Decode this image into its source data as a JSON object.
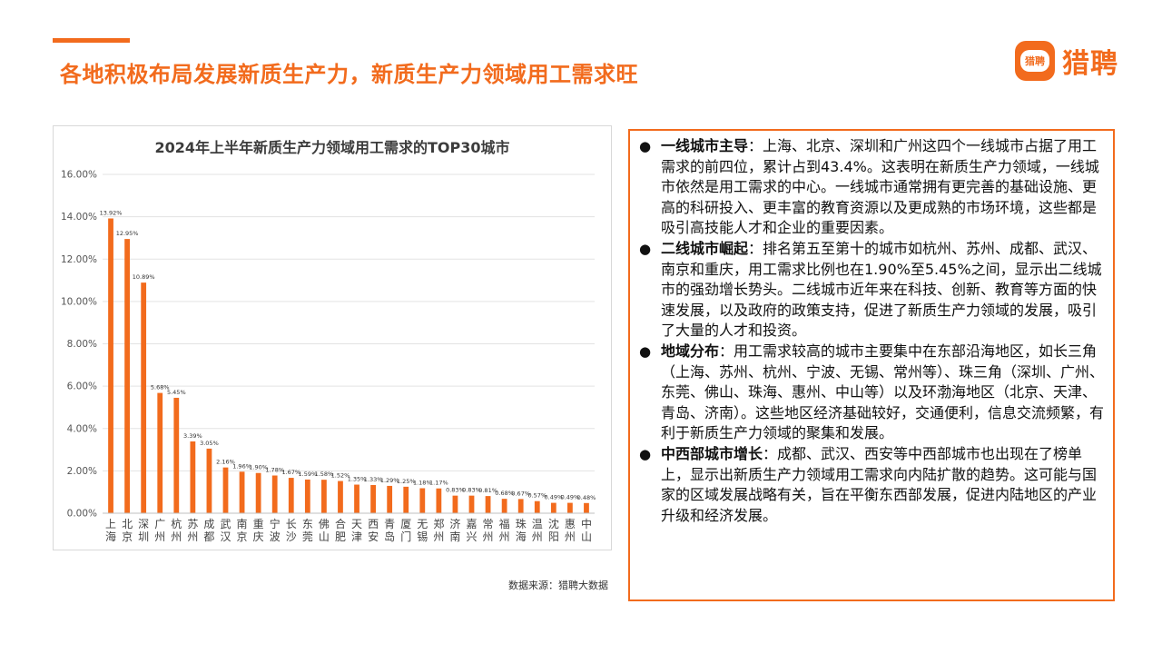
{
  "header": {
    "title": "各地积极布局发展新质生产力，新质生产力领域用工需求旺",
    "logo_badge": "猎聘",
    "logo_text": "猎聘"
  },
  "colors": {
    "accent": "#F26B1D",
    "bar": "#F26B1D",
    "grid": "#e3e3e3"
  },
  "chart_data": {
    "type": "bar",
    "title": "2024年上半年新质生产力领域用工需求的TOP30城市",
    "categories": [
      "上海",
      "北京",
      "深圳",
      "广州",
      "杭州",
      "苏州",
      "成都",
      "武汉",
      "南京",
      "重庆",
      "宁波",
      "长沙",
      "东莞",
      "佛山",
      "合肥",
      "天津",
      "西安",
      "青岛",
      "厦门",
      "无锡",
      "郑州",
      "济南",
      "嘉兴",
      "常州",
      "福州",
      "珠海",
      "温州",
      "沈阳",
      "惠州",
      "中山"
    ],
    "values": [
      13.92,
      12.95,
      10.89,
      5.68,
      5.45,
      3.39,
      3.05,
      2.16,
      1.96,
      1.9,
      1.78,
      1.67,
      1.59,
      1.58,
      1.52,
      1.35,
      1.33,
      1.29,
      1.25,
      1.18,
      1.17,
      0.83,
      0.83,
      0.81,
      0.68,
      0.67,
      0.57,
      0.49,
      0.49,
      0.48
    ],
    "data_labels": [
      "13.92%",
      "12.95%",
      "10.89%",
      "5.68%",
      "5.45%",
      "3.39%",
      "3.05%",
      "2.16%",
      "1.96%",
      "1.90%",
      "1.78%",
      "1.67%",
      "1.59%",
      "1.58%",
      "1.52%",
      "1.35%",
      "1.33%",
      "1.29%",
      "1.25%",
      "1.18%",
      "1.17%",
      "0.83%",
      "0.83%",
      "0.81%",
      "0.68%",
      "0.67%",
      "0.57%",
      "0.49%",
      "0.49%",
      "0.48%"
    ],
    "yticks": [
      "0.00%",
      "2.00%",
      "4.00%",
      "6.00%",
      "8.00%",
      "10.00%",
      "12.00%",
      "14.00%",
      "16.00%"
    ],
    "ylim": [
      0,
      16
    ],
    "xlabel": "",
    "ylabel": "",
    "grid": true
  },
  "source": "数据来源：猎聘大数据",
  "bullets": [
    {
      "head": "一线城市主导",
      "text": "：上海、北京、深圳和广州这四个一线城市占据了用工需求的前四位，累计占到43.4%。这表明在新质生产力领域，一线城市依然是用工需求的中心。一线城市通常拥有更完善的基础设施、更高的科研投入、更丰富的教育资源以及更成熟的市场环境，这些都是吸引高技能人才和企业的重要因素。"
    },
    {
      "head": "二线城市崛起",
      "text": "：排名第五至第十的城市如杭州、苏州、成都、武汉、南京和重庆，用工需求比例也在1.90%至5.45%之间，显示出二线城市的强劲增长势头。二线城市近年来在科技、创新、教育等方面的快速发展，以及政府的政策支持，促进了新质生产力领域的发展，吸引了大量的人才和投资。"
    },
    {
      "head": "地域分布",
      "text": "：用工需求较高的城市主要集中在东部沿海地区，如长三角（上海、苏州、杭州、宁波、无锡、常州等）、珠三角（深圳、广州、东莞、佛山、珠海、惠州、中山等）以及环渤海地区（北京、天津、青岛、济南）。这些地区经济基础较好，交通便利，信息交流频繁，有利于新质生产力领域的聚集和发展。"
    },
    {
      "head": "中西部城市增长",
      "text": "：成都、武汉、西安等中西部城市也出现在了榜单上，显示出新质生产力领域用工需求向内陆扩散的趋势。这可能与国家的区域发展战略有关，旨在平衡东西部发展，促进内陆地区的产业升级和经济发展。"
    }
  ]
}
